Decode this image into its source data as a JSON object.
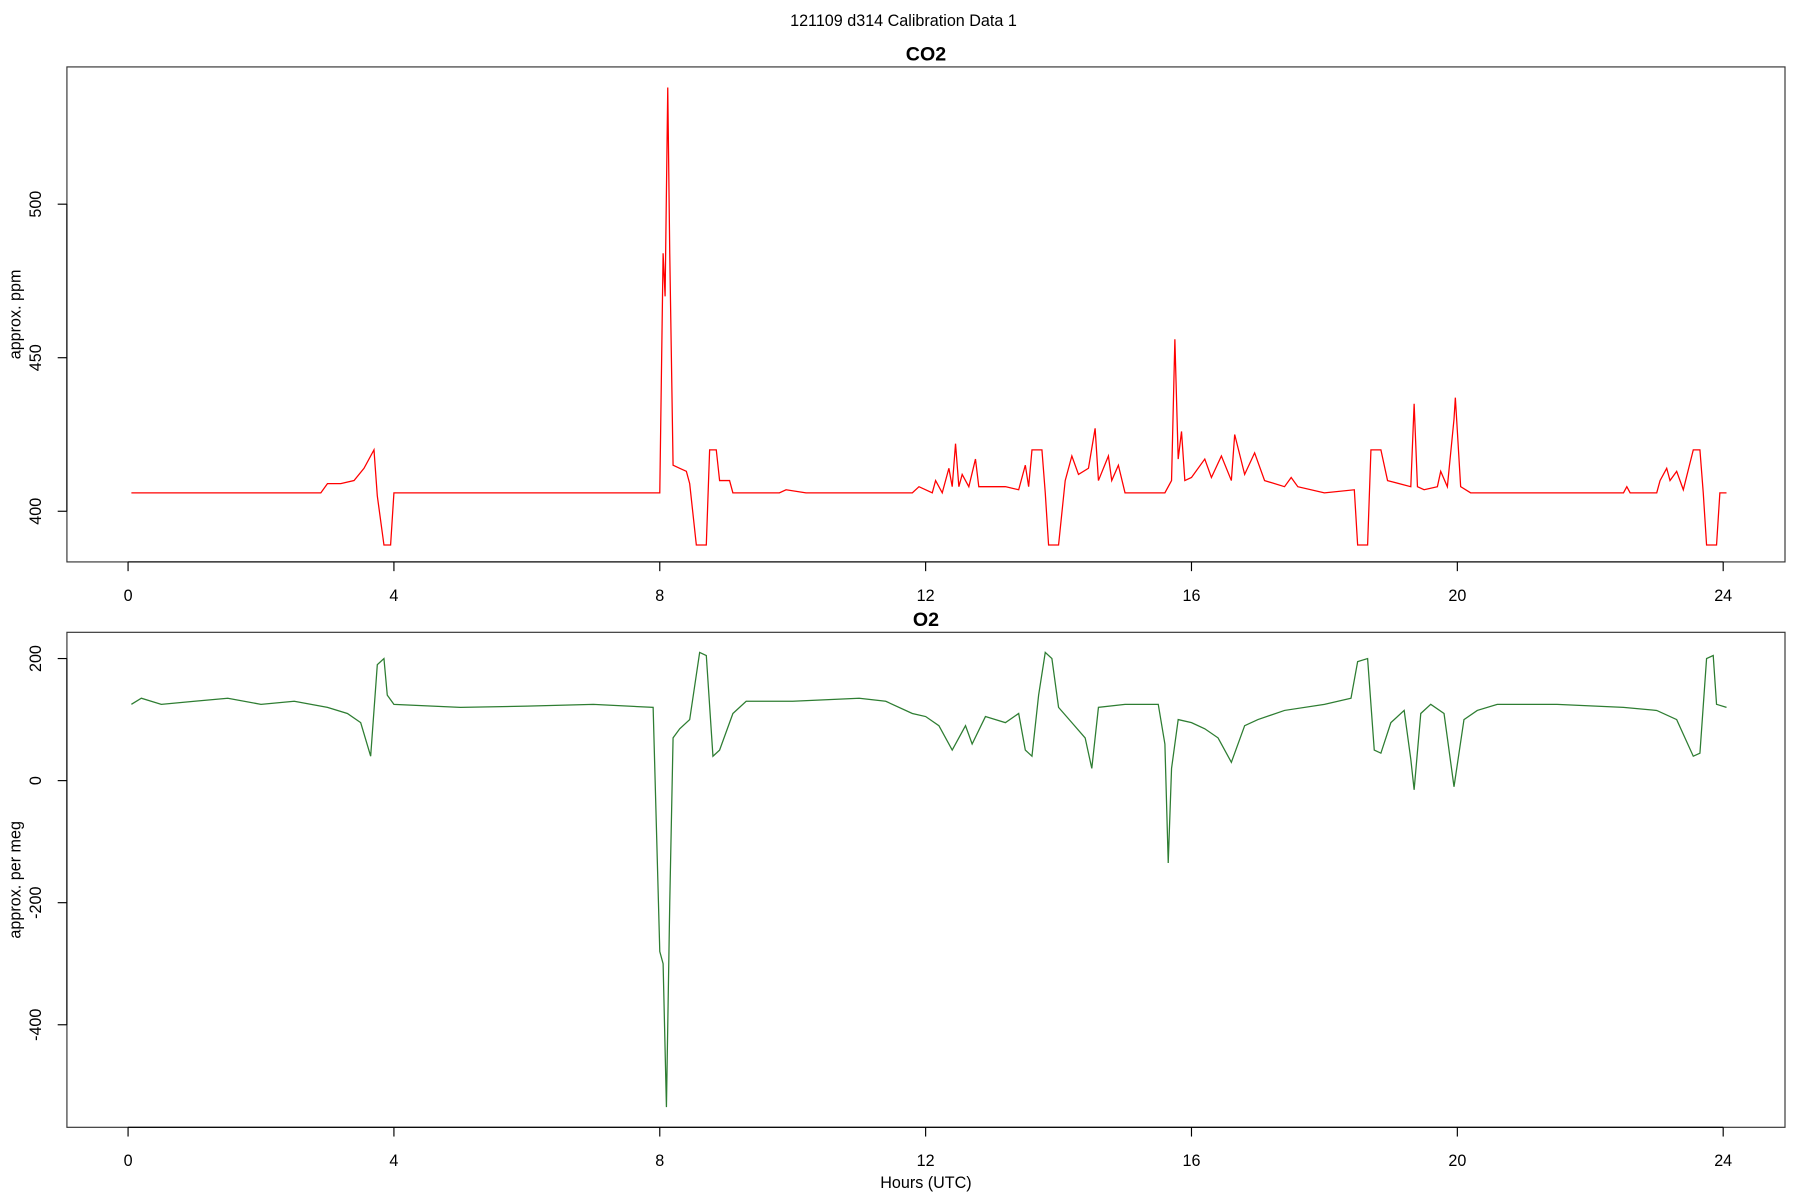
{
  "title": "121109   d314   Calibration Data 1",
  "chart_data": [
    {
      "type": "line",
      "title": "CO2",
      "ylabel": "approx. ppm",
      "color": "#ff0000",
      "xlim": [
        -0.92,
        24.93
      ],
      "xticks": [
        0,
        4,
        8,
        12,
        16,
        20,
        24
      ],
      "ylim": [
        383.5,
        544.7
      ],
      "yticks": [
        400,
        450,
        500
      ],
      "x": [
        0.05,
        2.9,
        3.0,
        3.2,
        3.4,
        3.55,
        3.7,
        3.75,
        3.85,
        3.95,
        4.0,
        7.9,
        8.0,
        8.05,
        8.08,
        8.12,
        8.15,
        8.2,
        8.3,
        8.4,
        8.45,
        8.55,
        8.7,
        8.75,
        8.85,
        8.9,
        9.05,
        9.1,
        9.8,
        9.9,
        10.2,
        11.8,
        11.9,
        12.1,
        12.15,
        12.25,
        12.35,
        12.4,
        12.45,
        12.5,
        12.55,
        12.65,
        12.75,
        12.8,
        13.2,
        13.4,
        13.5,
        13.55,
        13.6,
        13.75,
        13.8,
        13.85,
        14.0,
        14.1,
        14.2,
        14.3,
        14.45,
        14.55,
        14.6,
        14.75,
        14.8,
        14.9,
        15.0,
        15.6,
        15.7,
        15.75,
        15.8,
        15.85,
        15.9,
        16.0,
        16.2,
        16.3,
        16.45,
        16.6,
        16.65,
        16.8,
        16.95,
        17.1,
        17.4,
        17.5,
        17.6,
        18.0,
        18.45,
        18.5,
        18.65,
        18.7,
        18.85,
        18.95,
        19.3,
        19.35,
        19.4,
        19.5,
        19.7,
        19.75,
        19.85,
        19.95,
        19.97,
        20.05,
        20.2,
        22.5,
        22.55,
        22.6,
        23.0,
        23.05,
        23.15,
        23.2,
        23.3,
        23.4,
        23.55,
        23.65,
        23.7,
        23.75,
        23.9,
        23.95,
        24.05
      ],
      "values": [
        406,
        406,
        409,
        409,
        410,
        414,
        420,
        405,
        389,
        389,
        406,
        406,
        406,
        484,
        470,
        538,
        484,
        415,
        414,
        413,
        409,
        389,
        389,
        420,
        420,
        410,
        410,
        406,
        406,
        407,
        406,
        406,
        408,
        406,
        410,
        406,
        414,
        408,
        422,
        408,
        412,
        408,
        417,
        408,
        408,
        407,
        415,
        408,
        420,
        420,
        406,
        389,
        389,
        410,
        418,
        412,
        414,
        427,
        410,
        418,
        410,
        415,
        406,
        406,
        410,
        456,
        417,
        426,
        410,
        411,
        417,
        411,
        418,
        410,
        425,
        412,
        419,
        410,
        408,
        411,
        408,
        406,
        407,
        389,
        389,
        420,
        420,
        410,
        408,
        435,
        408,
        407,
        408,
        413,
        408,
        430,
        437,
        408,
        406,
        406,
        408,
        406,
        406,
        410,
        414,
        410,
        413,
        407,
        420,
        420,
        406,
        389,
        389,
        406,
        406
      ]
    },
    {
      "type": "line",
      "title": "O2",
      "ylabel": "approx. per meg",
      "xlabel": "Hours (UTC)",
      "color": "#2e7d32",
      "xlim": [
        -0.92,
        24.93
      ],
      "xticks": [
        0,
        4,
        8,
        12,
        16,
        20,
        24
      ],
      "ylim": [
        -568,
        243
      ],
      "yticks": [
        -400,
        -200,
        0,
        200
      ],
      "x": [
        0.05,
        0.2,
        0.5,
        1,
        1.5,
        2,
        2.5,
        3,
        3.3,
        3.5,
        3.65,
        3.75,
        3.85,
        3.9,
        4.0,
        5,
        6,
        7,
        7.9,
        8.0,
        8.05,
        8.1,
        8.15,
        8.2,
        8.3,
        8.45,
        8.6,
        8.7,
        8.8,
        8.9,
        9.1,
        9.3,
        10,
        11,
        11.4,
        11.8,
        12,
        12.2,
        12.4,
        12.6,
        12.7,
        12.9,
        13.2,
        13.4,
        13.5,
        13.6,
        13.7,
        13.8,
        13.9,
        14.0,
        14.2,
        14.4,
        14.5,
        14.6,
        15,
        15.5,
        15.6,
        15.65,
        15.7,
        15.8,
        16,
        16.2,
        16.4,
        16.6,
        16.8,
        17,
        17.4,
        18,
        18.4,
        18.5,
        18.65,
        18.75,
        18.85,
        19,
        19.2,
        19.3,
        19.35,
        19.45,
        19.6,
        19.8,
        19.95,
        20.1,
        20.3,
        20.6,
        21.5,
        22.5,
        23,
        23.3,
        23.55,
        23.65,
        23.75,
        23.85,
        23.9,
        24.05
      ],
      "values": [
        125,
        135,
        125,
        130,
        135,
        125,
        130,
        120,
        110,
        95,
        40,
        190,
        200,
        140,
        125,
        120,
        122,
        125,
        120,
        -280,
        -300,
        -535,
        -200,
        70,
        85,
        100,
        210,
        205,
        40,
        50,
        110,
        130,
        130,
        135,
        130,
        110,
        105,
        90,
        50,
        90,
        60,
        105,
        95,
        110,
        50,
        40,
        140,
        210,
        200,
        120,
        95,
        70,
        20,
        120,
        125,
        125,
        60,
        -135,
        20,
        100,
        95,
        85,
        70,
        30,
        90,
        100,
        115,
        125,
        135,
        195,
        200,
        50,
        45,
        95,
        115,
        35,
        -15,
        110,
        125,
        110,
        -10,
        100,
        115,
        125,
        125,
        120,
        115,
        100,
        40,
        45,
        200,
        205,
        125,
        120
      ]
    }
  ]
}
